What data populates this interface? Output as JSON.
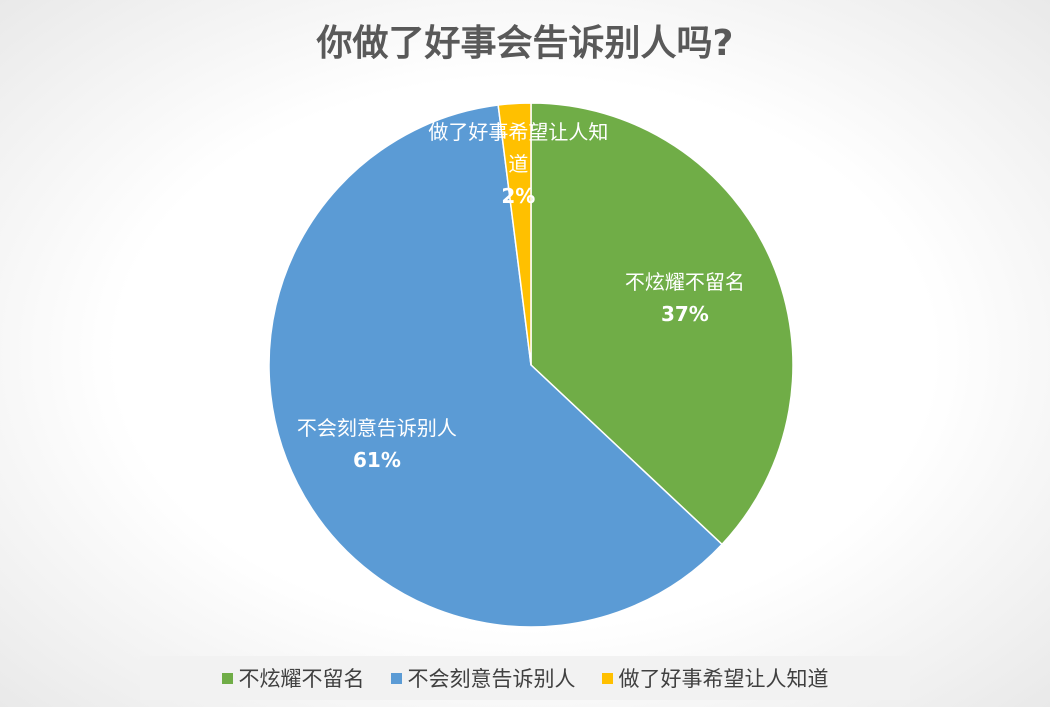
{
  "chart_data": {
    "type": "pie",
    "title": "你做了好事会告诉别人吗?",
    "categories": [
      "不炫耀不留名",
      "不会刻意告诉别人",
      "做了好事希望让人知道"
    ],
    "values": [
      37,
      61,
      2
    ],
    "value_labels": [
      "37%",
      "61%",
      "2%"
    ],
    "colors": [
      "#70ad47",
      "#5b9bd5",
      "#ffc000"
    ],
    "legend": "bottom"
  }
}
